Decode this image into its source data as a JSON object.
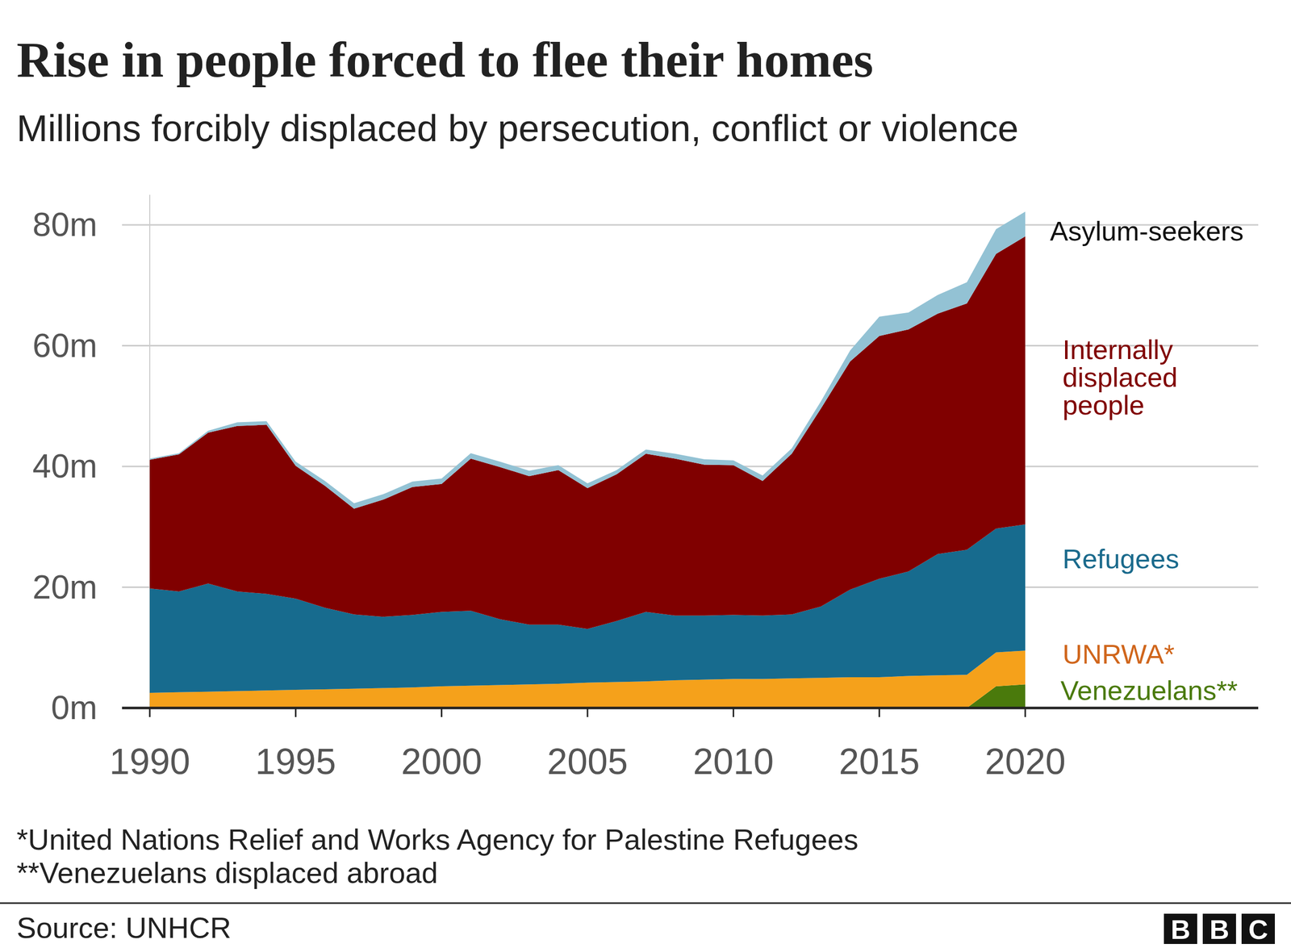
{
  "chart_data": {
    "type": "area",
    "stacked": true,
    "grid": true,
    "title": "Rise in people forced to flee their homes",
    "subtitle": "Millions forcibly displaced by persecution, conflict or violence",
    "x": [
      1990,
      1991,
      1992,
      1993,
      1994,
      1995,
      1996,
      1997,
      1998,
      1999,
      2000,
      2001,
      2002,
      2003,
      2004,
      2005,
      2006,
      2007,
      2008,
      2009,
      2010,
      2011,
      2012,
      2013,
      2014,
      2015,
      2016,
      2017,
      2018,
      2019,
      2020
    ],
    "series": [
      {
        "name": "Venezuelans**",
        "color": "#4a7a0c",
        "values": [
          0,
          0,
          0,
          0,
          0,
          0,
          0,
          0,
          0,
          0,
          0,
          0,
          0,
          0,
          0,
          0,
          0,
          0,
          0,
          0,
          0,
          0,
          0,
          0,
          0,
          0,
          0,
          0,
          0,
          3.6,
          3.9
        ]
      },
      {
        "name": "UNRWA*",
        "color": "#f5a11b",
        "values": [
          2.5,
          2.6,
          2.7,
          2.8,
          2.9,
          3.0,
          3.1,
          3.2,
          3.3,
          3.4,
          3.6,
          3.7,
          3.8,
          3.9,
          4.0,
          4.2,
          4.3,
          4.4,
          4.6,
          4.7,
          4.8,
          4.8,
          4.9,
          5.0,
          5.1,
          5.1,
          5.3,
          5.4,
          5.5,
          5.6,
          5.6
        ]
      },
      {
        "name": "Refugees",
        "color": "#176b8e",
        "values": [
          17.3,
          16.7,
          17.9,
          16.5,
          16.0,
          15.1,
          13.5,
          12.3,
          11.8,
          12.0,
          12.3,
          12.4,
          10.9,
          9.9,
          9.8,
          8.9,
          10.1,
          11.5,
          10.7,
          10.6,
          10.6,
          10.5,
          10.6,
          11.8,
          14.5,
          16.3,
          17.3,
          20.1,
          20.7,
          20.5,
          20.9
        ]
      },
      {
        "name": "Internally displaced people",
        "color": "#800000",
        "values": [
          21.3,
          22.7,
          25.0,
          27.4,
          28.0,
          22.0,
          20.2,
          17.5,
          19.4,
          21.2,
          21.2,
          25.2,
          25.2,
          24.6,
          25.6,
          23.3,
          24.3,
          26.2,
          26.0,
          25.0,
          24.8,
          22.3,
          26.6,
          32.8,
          37.8,
          40.2,
          40.1,
          39.8,
          40.8,
          45.5,
          47.7
        ]
      },
      {
        "name": "Asylum-seekers",
        "color": "#93c2d4",
        "values": [
          0.2,
          0.2,
          0.3,
          0.6,
          0.6,
          0.7,
          0.8,
          0.9,
          0.9,
          0.9,
          0.9,
          0.9,
          0.9,
          0.9,
          0.8,
          0.8,
          0.7,
          0.7,
          0.8,
          0.9,
          0.8,
          0.9,
          0.9,
          1.2,
          1.8,
          3.2,
          2.8,
          3.1,
          3.5,
          4.1,
          4.1
        ]
      }
    ],
    "xlim": [
      1990,
      2020
    ],
    "xticks": [
      1990,
      1995,
      2000,
      2005,
      2010,
      2015,
      2020
    ],
    "ylim": [
      0,
      85
    ],
    "yticks": [
      {
        "value": 0,
        "label": "0m"
      },
      {
        "value": 20,
        "label": "20m"
      },
      {
        "value": 40,
        "label": "40m"
      },
      {
        "value": 60,
        "label": "60m"
      },
      {
        "value": 80,
        "label": "80m"
      }
    ],
    "notes": [
      "*United Nations Relief and Works Agency for Palestine Refugees",
      "**Venezuelans displaced abroad"
    ],
    "source": "Source: UNHCR",
    "logo": "BBC"
  }
}
